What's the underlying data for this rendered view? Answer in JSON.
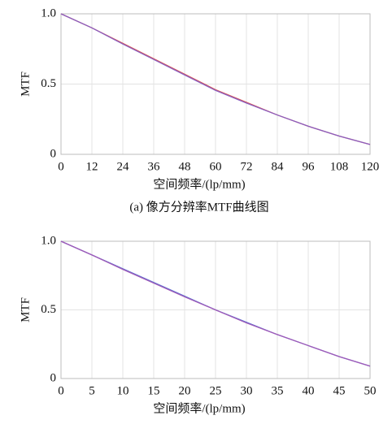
{
  "chart_data": [
    {
      "type": "line",
      "x_label": "空间频率/(lp/mm)",
      "y_label": "MTF",
      "caption": "(a) 像方分辨率MTF曲线图",
      "x": [
        0,
        12,
        24,
        36,
        48,
        60,
        72,
        84,
        96,
        108,
        120
      ],
      "series": [
        {
          "color": "#d9534f",
          "values": [
            1,
            0.9,
            0.79,
            0.68,
            0.57,
            0.46,
            0.37,
            0.28,
            0.2,
            0.13,
            0.07
          ]
        },
        {
          "color": "#8a5fc0",
          "values": [
            1,
            0.9,
            0.785,
            0.675,
            0.565,
            0.455,
            0.365,
            0.28,
            0.2,
            0.13,
            0.07
          ]
        }
      ],
      "xlim": [
        0,
        120
      ],
      "xticks": [
        0,
        12,
        24,
        36,
        48,
        60,
        72,
        84,
        96,
        108,
        120
      ],
      "ylim": [
        0,
        1
      ],
      "yticks": [
        0,
        0.5,
        {
          "value": 1,
          "label": "1.0"
        }
      ],
      "grid": true
    },
    {
      "type": "line",
      "x_label": "空间频率/(lp/mm)",
      "y_label": "MTF",
      "x": [
        0,
        5,
        10,
        15,
        20,
        25,
        30,
        35,
        40,
        45,
        50
      ],
      "series": [
        {
          "color": "#5b6fd0",
          "values": [
            1,
            0.9,
            0.8,
            0.7,
            0.6,
            0.5,
            0.41,
            0.32,
            0.24,
            0.16,
            0.09
          ]
        },
        {
          "color": "#a05ab8",
          "values": [
            1,
            0.9,
            0.795,
            0.695,
            0.595,
            0.5,
            0.405,
            0.32,
            0.24,
            0.16,
            0.09
          ]
        }
      ],
      "xlim": [
        0,
        50
      ],
      "xticks": [
        0,
        5,
        10,
        15,
        20,
        25,
        30,
        35,
        40,
        45,
        50
      ],
      "ylim": [
        0,
        1
      ],
      "yticks": [
        0,
        0.5,
        {
          "value": 1,
          "label": "1.0"
        }
      ],
      "grid": true
    }
  ]
}
